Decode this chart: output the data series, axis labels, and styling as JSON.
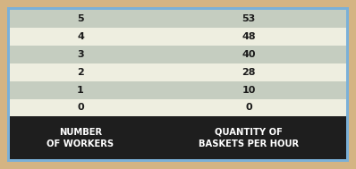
{
  "col1_header": "NUMBER\nOF WORKERS",
  "col2_header": "QUANTITY OF\nBASKETS PER HOUR",
  "rows": [
    [
      "0",
      "0"
    ],
    [
      "1",
      "10"
    ],
    [
      "2",
      "28"
    ],
    [
      "3",
      "40"
    ],
    [
      "4",
      "48"
    ],
    [
      "5",
      "53"
    ]
  ],
  "header_bg": "#1e1e1e",
  "header_text_color": "#ffffff",
  "row_colors": [
    "#eeeee0",
    "#c5cdc0",
    "#eeeee0",
    "#c5cdc0",
    "#eeeee0",
    "#c5cdc0"
  ],
  "cell_text_color": "#1a1a1a",
  "border_color": "#7ab0d8",
  "outer_bg": "#d4b483",
  "figsize": [
    3.98,
    1.89
  ],
  "dpi": 100
}
